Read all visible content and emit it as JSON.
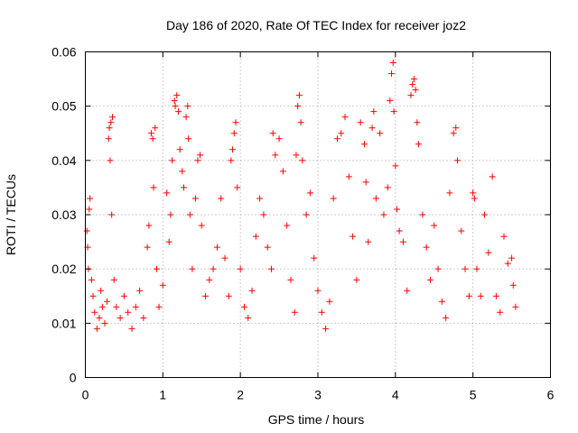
{
  "chart_data": {
    "type": "scatter",
    "title": "Day 186 of 2020, Rate Of TEC Index for receiver joz2",
    "xlabel": "GPS time / hours",
    "ylabel": "ROTI / TECUs",
    "xlim": [
      0,
      6
    ],
    "ylim": [
      0,
      0.06
    ],
    "xticks": [
      0,
      1,
      2,
      3,
      4,
      5,
      6
    ],
    "xtick_labels": [
      "0",
      "1",
      "2",
      "3",
      "4",
      "5",
      "6"
    ],
    "yticks": [
      0,
      0.01,
      0.02,
      0.03,
      0.04,
      0.05,
      0.06
    ],
    "ytick_labels": [
      "0",
      "0.01",
      "0.02",
      "0.03",
      "0.04",
      "0.05",
      "0.06"
    ],
    "grid": true,
    "marker": "plus",
    "color": "#ff0000",
    "series": [
      {
        "name": "ROTI",
        "points": [
          [
            0.02,
            0.027
          ],
          [
            0.03,
            0.024
          ],
          [
            0.05,
            0.031
          ],
          [
            0.06,
            0.033
          ],
          [
            0.04,
            0.02
          ],
          [
            0.08,
            0.018
          ],
          [
            0.1,
            0.015
          ],
          [
            0.12,
            0.012
          ],
          [
            0.15,
            0.009
          ],
          [
            0.18,
            0.011
          ],
          [
            0.2,
            0.016
          ],
          [
            0.22,
            0.013
          ],
          [
            0.25,
            0.01
          ],
          [
            0.28,
            0.014
          ],
          [
            0.3,
            0.044
          ],
          [
            0.31,
            0.046
          ],
          [
            0.33,
            0.047
          ],
          [
            0.35,
            0.048
          ],
          [
            0.32,
            0.04
          ],
          [
            0.34,
            0.03
          ],
          [
            0.37,
            0.018
          ],
          [
            0.4,
            0.013
          ],
          [
            0.45,
            0.011
          ],
          [
            0.5,
            0.015
          ],
          [
            0.55,
            0.012
          ],
          [
            0.6,
            0.009
          ],
          [
            0.65,
            0.013
          ],
          [
            0.7,
            0.016
          ],
          [
            0.75,
            0.011
          ],
          [
            0.8,
            0.024
          ],
          [
            0.82,
            0.028
          ],
          [
            0.85,
            0.045
          ],
          [
            0.87,
            0.044
          ],
          [
            0.9,
            0.046
          ],
          [
            0.88,
            0.035
          ],
          [
            0.92,
            0.02
          ],
          [
            0.95,
            0.013
          ],
          [
            1.0,
            0.017
          ],
          [
            1.05,
            0.034
          ],
          [
            1.08,
            0.025
          ],
          [
            1.1,
            0.03
          ],
          [
            1.12,
            0.04
          ],
          [
            1.15,
            0.051
          ],
          [
            1.16,
            0.05
          ],
          [
            1.18,
            0.052
          ],
          [
            1.2,
            0.049
          ],
          [
            1.22,
            0.042
          ],
          [
            1.25,
            0.038
          ],
          [
            1.27,
            0.035
          ],
          [
            1.3,
            0.048
          ],
          [
            1.32,
            0.05
          ],
          [
            1.33,
            0.044
          ],
          [
            1.35,
            0.03
          ],
          [
            1.38,
            0.02
          ],
          [
            1.42,
            0.033
          ],
          [
            1.45,
            0.04
          ],
          [
            1.48,
            0.041
          ],
          [
            1.5,
            0.028
          ],
          [
            1.55,
            0.015
          ],
          [
            1.6,
            0.018
          ],
          [
            1.65,
            0.02
          ],
          [
            1.7,
            0.024
          ],
          [
            1.75,
            0.033
          ],
          [
            1.8,
            0.022
          ],
          [
            1.85,
            0.015
          ],
          [
            1.88,
            0.04
          ],
          [
            1.9,
            0.042
          ],
          [
            1.92,
            0.045
          ],
          [
            1.94,
            0.047
          ],
          [
            1.96,
            0.035
          ],
          [
            2.0,
            0.02
          ],
          [
            2.05,
            0.013
          ],
          [
            2.1,
            0.011
          ],
          [
            2.15,
            0.016
          ],
          [
            2.2,
            0.026
          ],
          [
            2.25,
            0.033
          ],
          [
            2.3,
            0.03
          ],
          [
            2.35,
            0.024
          ],
          [
            2.4,
            0.02
          ],
          [
            2.42,
            0.045
          ],
          [
            2.45,
            0.041
          ],
          [
            2.5,
            0.044
          ],
          [
            2.55,
            0.038
          ],
          [
            2.6,
            0.028
          ],
          [
            2.65,
            0.018
          ],
          [
            2.7,
            0.012
          ],
          [
            2.72,
            0.041
          ],
          [
            2.74,
            0.05
          ],
          [
            2.76,
            0.052
          ],
          [
            2.78,
            0.047
          ],
          [
            2.8,
            0.04
          ],
          [
            2.85,
            0.03
          ],
          [
            2.9,
            0.034
          ],
          [
            2.95,
            0.022
          ],
          [
            3.0,
            0.016
          ],
          [
            3.05,
            0.012
          ],
          [
            3.1,
            0.009
          ],
          [
            3.15,
            0.014
          ],
          [
            3.2,
            0.033
          ],
          [
            3.25,
            0.044
          ],
          [
            3.3,
            0.045
          ],
          [
            3.35,
            0.048
          ],
          [
            3.4,
            0.037
          ],
          [
            3.45,
            0.026
          ],
          [
            3.5,
            0.018
          ],
          [
            3.55,
            0.047
          ],
          [
            3.6,
            0.043
          ],
          [
            3.62,
            0.036
          ],
          [
            3.65,
            0.025
          ],
          [
            3.7,
            0.046
          ],
          [
            3.72,
            0.049
          ],
          [
            3.75,
            0.033
          ],
          [
            3.8,
            0.045
          ],
          [
            3.85,
            0.03
          ],
          [
            3.9,
            0.035
          ],
          [
            3.93,
            0.051
          ],
          [
            3.95,
            0.056
          ],
          [
            3.97,
            0.058
          ],
          [
            3.98,
            0.049
          ],
          [
            4.0,
            0.039
          ],
          [
            4.02,
            0.031
          ],
          [
            4.05,
            0.027
          ],
          [
            4.1,
            0.025
          ],
          [
            4.15,
            0.016
          ],
          [
            4.2,
            0.052
          ],
          [
            4.22,
            0.054
          ],
          [
            4.24,
            0.055
          ],
          [
            4.26,
            0.053
          ],
          [
            4.28,
            0.047
          ],
          [
            4.3,
            0.043
          ],
          [
            4.35,
            0.03
          ],
          [
            4.4,
            0.024
          ],
          [
            4.45,
            0.018
          ],
          [
            4.5,
            0.028
          ],
          [
            4.55,
            0.02
          ],
          [
            4.6,
            0.014
          ],
          [
            4.65,
            0.011
          ],
          [
            4.7,
            0.034
          ],
          [
            4.75,
            0.045
          ],
          [
            4.78,
            0.046
          ],
          [
            4.8,
            0.04
          ],
          [
            4.85,
            0.027
          ],
          [
            4.9,
            0.02
          ],
          [
            4.95,
            0.015
          ],
          [
            5.0,
            0.034
          ],
          [
            5.02,
            0.033
          ],
          [
            5.05,
            0.02
          ],
          [
            5.1,
            0.015
          ],
          [
            5.15,
            0.03
          ],
          [
            5.2,
            0.023
          ],
          [
            5.25,
            0.037
          ],
          [
            5.3,
            0.015
          ],
          [
            5.35,
            0.012
          ],
          [
            5.4,
            0.026
          ],
          [
            5.45,
            0.021
          ],
          [
            5.5,
            0.022
          ],
          [
            5.52,
            0.017
          ],
          [
            5.55,
            0.013
          ]
        ]
      }
    ]
  }
}
